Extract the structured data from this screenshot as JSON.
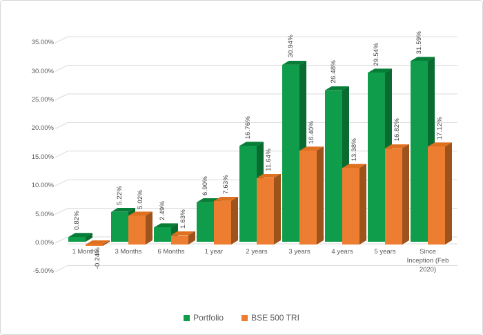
{
  "chart_data": {
    "type": "bar",
    "style": "3d-clustered-column",
    "title": "",
    "xlabel": "",
    "ylabel": "",
    "categories": [
      "1 Months",
      "3 Months",
      "6 Months",
      "1 year",
      "2 years",
      "3 years",
      "4 years",
      "5 years",
      "Since\nInception (Feb\n2020)"
    ],
    "series": [
      {
        "name": "Portfolio",
        "color": "#0f9d4b",
        "color_top": "#077e38",
        "color_side": "#0a6b30",
        "values": [
          0.82,
          5.22,
          2.49,
          6.9,
          16.76,
          30.94,
          26.48,
          29.54,
          31.59
        ]
      },
      {
        "name": "BSE 500 TRI",
        "color": "#ed7d31",
        "color_top": "#de701f",
        "color_side": "#9e531d",
        "values": [
          -0.24,
          5.02,
          1.63,
          7.63,
          11.64,
          16.4,
          13.38,
          16.82,
          17.12
        ]
      }
    ],
    "yticks": [
      "-5.00%",
      "0.00%",
      "5.00%",
      "10.00%",
      "15.00%",
      "20.00%",
      "25.00%",
      "30.00%",
      "35.00%"
    ],
    "ylim": [
      -5,
      35
    ],
    "y_step": 5,
    "grid": true,
    "label_format": "0.00%",
    "legend_position": "bottom",
    "grid_color": "#d9d9d9",
    "text_color": "#595959",
    "data_label_color": "#404040"
  }
}
